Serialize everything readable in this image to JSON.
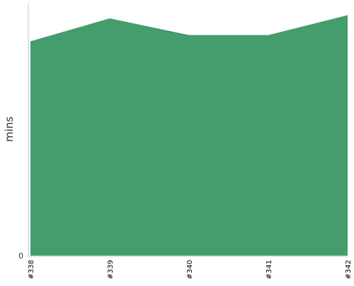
{
  "chart_data": {
    "type": "area",
    "categories": [
      "#338",
      "#339",
      "#340",
      "#341",
      "#342"
    ],
    "series": [
      {
        "values": [
          68,
          75.3,
          70,
          70,
          76.3
        ]
      }
    ],
    "ylabel": "mins",
    "xlabel": "",
    "title": "",
    "ylim": [
      0,
      80
    ],
    "yticks": [
      0
    ],
    "grid": false,
    "legend": "none",
    "colors": {
      "area": "#459c6d",
      "axis": "#c8c8c8",
      "text": "#333333"
    }
  }
}
